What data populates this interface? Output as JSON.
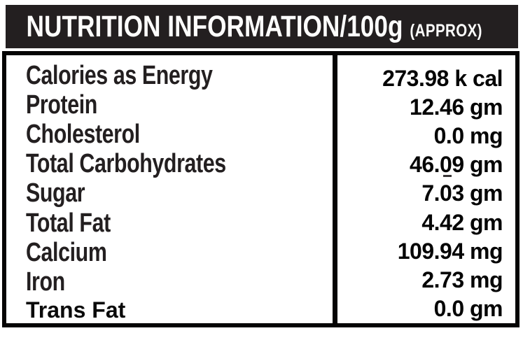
{
  "header": {
    "title": "NUTRITION INFORMATION/100g",
    "approx": "(APPROX)"
  },
  "table": {
    "rows": [
      {
        "label": "Calories as Energy",
        "value": "273.98 k cal"
      },
      {
        "label": "Protein",
        "value": "12.46 gm"
      },
      {
        "label": "Cholesterol",
        "value": "0.0 mg"
      },
      {
        "label": "Total Carbohydrates",
        "value": "46.09 gm"
      },
      {
        "label": "Sugar",
        "value": "7.03 gm"
      },
      {
        "label": "Total Fat",
        "value": "4.42 gm"
      },
      {
        "label": "Calcium",
        "value": "109.94 mg"
      },
      {
        "label": "Iron",
        "value": "2.73 mg"
      },
      {
        "label": "Trans Fat",
        "value": "0.0 gm"
      }
    ]
  },
  "colors": {
    "header_bg": "#231f20",
    "header_text": "#fdfdfc",
    "label_text": "#231f20",
    "value_text": "#050505",
    "border": "#050404",
    "background": "#ffffff"
  }
}
